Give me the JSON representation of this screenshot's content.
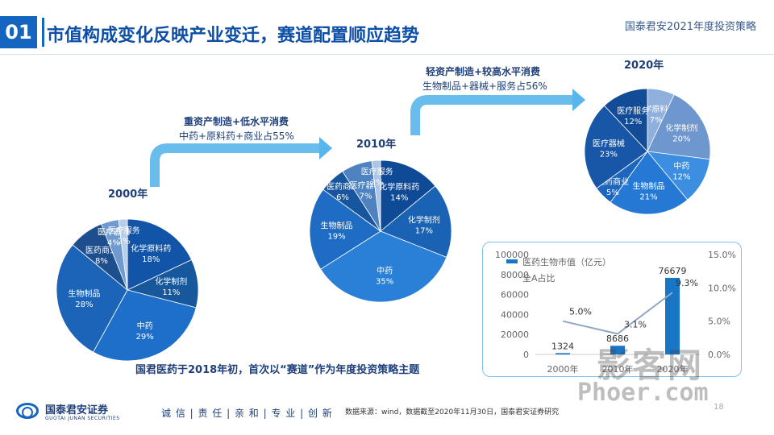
{
  "header": {
    "section_number": "01",
    "title": "市值构成变化反映产业变迁，赛道配置顺应趋势",
    "brand": "国泰君安2021年度投资策略"
  },
  "transitions": [
    {
      "bold": "重资产制造+低水平消费",
      "normal": "中药+原料药+商业占55%"
    },
    {
      "bold": "轻资产制造+较高水平消费",
      "normal": "生物制品+器械+服务占56%"
    }
  ],
  "theme_text": "国君医药于2018年初，首次以“赛道”作为年度投资策略主题",
  "footer": {
    "company_cn": "国泰君安证券",
    "company_en": "GUOTAI JUNAN SECURITIES",
    "slogan": "诚 信 | 责 任 | 亲 和 | 专 业 | 创 新",
    "source": "数据来源：wind，数据截至2020年11月30日，国泰君安证券研究",
    "page_number": "18"
  },
  "watermark": {
    "line1": "影客网",
    "line2": "Phoer.com"
  },
  "colors": {
    "accent": "#1565c0",
    "title": "#0d4ea6",
    "text": "#1f3f7a"
  },
  "chart_data": [
    {
      "type": "pie",
      "title": "2000年",
      "slices": [
        {
          "name": "化学原料药",
          "value": 18,
          "label": "18%",
          "color": "#1255a8"
        },
        {
          "name": "化学制剂",
          "value": 11,
          "label": "11%",
          "color": "#17589c"
        },
        {
          "name": "中药",
          "value": 29,
          "label": "29%",
          "color": "#1e6fc9"
        },
        {
          "name": "生物制品",
          "value": 28,
          "label": "28%",
          "color": "#1c64b8"
        },
        {
          "name": "医药商业",
          "value": 8,
          "label": "8%",
          "color": "#1f4e8f"
        },
        {
          "name": "医疗器械",
          "value": 4,
          "label": "4%",
          "color": "#6f9ad0"
        },
        {
          "name": "医疗服务",
          "value": 2,
          "label": "2%",
          "color": "#b9cde8"
        }
      ]
    },
    {
      "type": "pie",
      "title": "2010年",
      "slices": [
        {
          "name": "化学原料药",
          "value": 14,
          "label": "14%",
          "color": "#0f4a97"
        },
        {
          "name": "化学制剂",
          "value": 17,
          "label": "17%",
          "color": "#1a62b4"
        },
        {
          "name": "中药",
          "value": 35,
          "label": "35%",
          "color": "#2a7fd6"
        },
        {
          "name": "生物制品",
          "value": 19,
          "label": "19%",
          "color": "#1f6cc4"
        },
        {
          "name": "医药商业",
          "value": 6,
          "label": "6%",
          "color": "#17559e"
        },
        {
          "name": "医疗器械",
          "value": 7,
          "label": "7%",
          "color": "#4f82c0"
        },
        {
          "name": "医疗服务",
          "value": 2,
          "label": "2%",
          "color": "#aec5e6"
        }
      ]
    },
    {
      "type": "pie",
      "title": "2020年",
      "slices": [
        {
          "name": "化学原料药",
          "value": 7,
          "label": "7%",
          "color": "#8fb0dc"
        },
        {
          "name": "化学制剂",
          "value": 20,
          "label": "20%",
          "color": "#6e97d0"
        },
        {
          "name": "中药",
          "value": 12,
          "label": "12%",
          "color": "#3b8ee0"
        },
        {
          "name": "生物制品",
          "value": 21,
          "label": "21%",
          "color": "#2579d4"
        },
        {
          "name": "医药商业",
          "value": 5,
          "label": "5%",
          "color": "#1e66bd"
        },
        {
          "name": "医疗器械",
          "value": 23,
          "label": "23%",
          "color": "#1857a8"
        },
        {
          "name": "医疗服务",
          "value": 12,
          "label": "12%",
          "color": "#134c96"
        }
      ]
    },
    {
      "type": "bar",
      "categories": [
        "2000年",
        "2010年",
        "2020年"
      ],
      "series": [
        {
          "name": "医药生物市值（亿元）",
          "type": "bar",
          "axis": "left",
          "values": [
            1324,
            8686,
            76679
          ],
          "color": "#1976c4"
        },
        {
          "name": "全A占比",
          "type": "line",
          "axis": "right",
          "values": [
            5.0,
            3.1,
            9.3
          ],
          "value_labels": [
            "5.0%",
            "3.1%",
            "9.3%"
          ],
          "color": "#90a8c8"
        }
      ],
      "y_left": {
        "ylim": [
          0,
          100000
        ],
        "ticks": [
          "0",
          "20000",
          "40000",
          "60000",
          "80000",
          "100000"
        ]
      },
      "y_right": {
        "ylim": [
          0,
          15
        ],
        "ticks": [
          "0.0%",
          "5.0%",
          "10.0%",
          "15.0%"
        ]
      },
      "legend_position": "top-left"
    }
  ]
}
